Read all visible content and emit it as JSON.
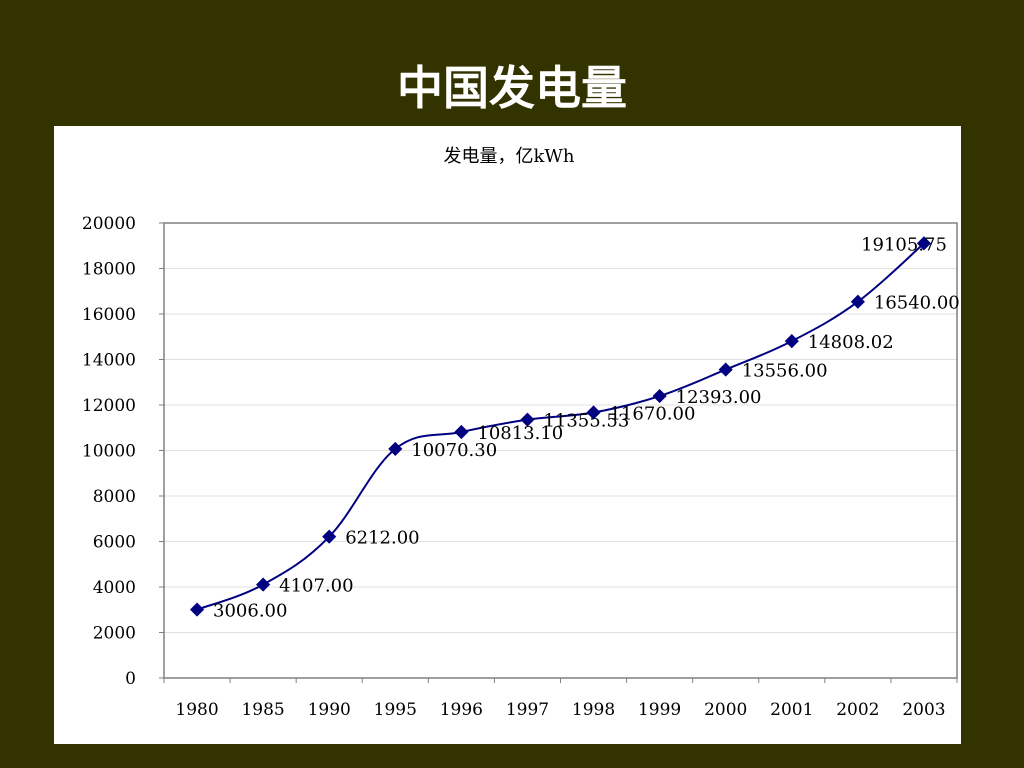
{
  "slide": {
    "title": "中国发电量"
  },
  "chart_data": {
    "type": "line",
    "title": "发电量，亿kWh",
    "categories": [
      "1980",
      "1985",
      "1990",
      "1995",
      "1996",
      "1997",
      "1998",
      "1999",
      "2000",
      "2001",
      "2002",
      "2003"
    ],
    "series": [
      {
        "values": [
          3006.0,
          4107.0,
          6212.0,
          10070.3,
          10813.1,
          11355.53,
          11670.0,
          12393.0,
          13556.0,
          14808.02,
          16540.0,
          19105.75
        ],
        "labels": [
          "3006.00",
          "4107.00",
          "6212.00",
          "10070.30",
          "10813.10",
          "11355.53",
          "11670.00",
          "12393.00",
          "13556.00",
          "14808.02",
          "16540.00",
          "19105.75"
        ],
        "color": "#000080"
      }
    ],
    "ylim": [
      0,
      20000
    ],
    "yticks": [
      0,
      2000,
      4000,
      6000,
      8000,
      10000,
      12000,
      14000,
      16000,
      18000,
      20000
    ],
    "xlabel": "",
    "ylabel": "",
    "grid": "horizontal",
    "legend": "none"
  }
}
